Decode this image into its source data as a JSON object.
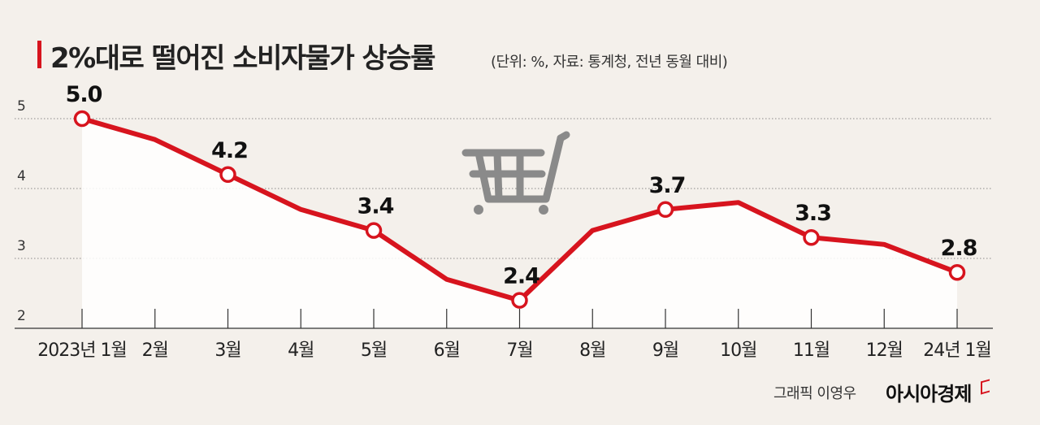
{
  "title": "2%대로 떨어진 소비자물가 상승률",
  "subtitle": "(단위: %, 자료: 통계청, 전년 동월 대비)",
  "credit": "그래픽 이영우",
  "brand": "아시아경제",
  "icons": [
    "shopping-cart-icon"
  ],
  "colors": {
    "line": "#d7141e",
    "accent": "#d7141e",
    "icon": "#8a8a8a"
  },
  "chart_data": {
    "type": "line",
    "categories": [
      "2023년 1월",
      "2월",
      "3월",
      "4월",
      "5월",
      "6월",
      "7월",
      "8월",
      "9월",
      "10월",
      "11월",
      "12월",
      "24년 1월"
    ],
    "series": [
      {
        "values": [
          5.0,
          4.7,
          4.2,
          3.7,
          3.4,
          2.7,
          2.4,
          3.4,
          3.7,
          3.8,
          3.3,
          3.2,
          2.8
        ]
      }
    ],
    "labeled_points": [
      0,
      2,
      4,
      6,
      8,
      10,
      12
    ],
    "data_labels": [
      "5.0",
      "4.2",
      "3.4",
      "2.4",
      "3.7",
      "3.3",
      "2.8"
    ],
    "yticks": [
      2,
      3,
      4,
      5
    ],
    "ylim": [
      2,
      5.2
    ],
    "grid": "dotted-horizontal",
    "area_fill": true
  }
}
